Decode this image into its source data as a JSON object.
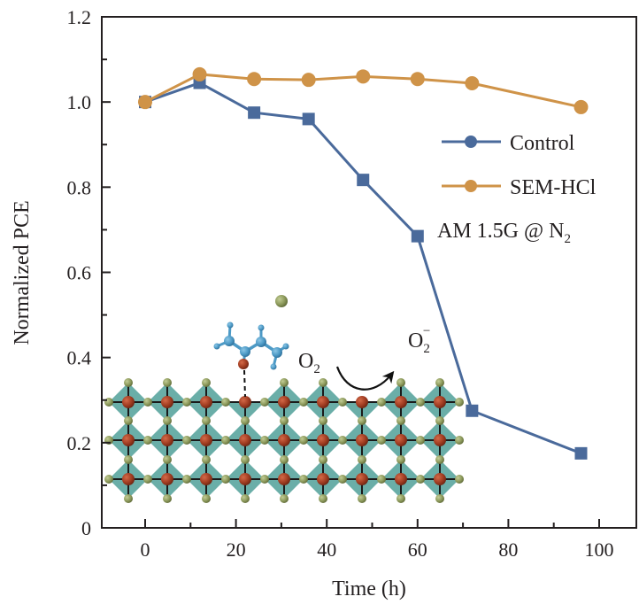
{
  "chart_data": {
    "type": "line",
    "title": "",
    "xlabel": "Time (h)",
    "ylabel": "Normalized PCE",
    "xlim": [
      -10,
      110
    ],
    "ylim": [
      0,
      1.2
    ],
    "xticks": [
      0,
      20,
      40,
      60,
      80,
      100
    ],
    "xtick_labels": [
      "0",
      "20",
      "40",
      "60",
      "80",
      "100"
    ],
    "x_minor_ticks": [
      10,
      30,
      50,
      70,
      90
    ],
    "yticks": [
      0,
      0.2,
      0.4,
      0.6,
      0.8,
      1.0,
      1.2
    ],
    "ytick_labels": [
      "0",
      "0.2",
      "0.4",
      "0.6",
      "0.8",
      "1.0",
      "1.2"
    ],
    "y_minor_ticks": [
      0.1,
      0.3,
      0.5,
      0.7,
      0.9,
      1.1
    ],
    "grid": false,
    "legend_position": "right",
    "series": [
      {
        "name": "Control",
        "color": "#4a6a9b",
        "marker": "square",
        "legend_marker": "circle",
        "x": [
          0,
          12,
          24,
          36,
          48,
          60,
          72,
          96
        ],
        "y": [
          1.0,
          1.045,
          0.975,
          0.96,
          0.817,
          0.685,
          0.275,
          0.175
        ]
      },
      {
        "name": "SEM-HCl",
        "color": "#cf9348",
        "marker": "circle",
        "legend_marker": "circle",
        "x": [
          0,
          12,
          24,
          36,
          48,
          60,
          72,
          96
        ],
        "y": [
          1.0,
          1.065,
          1.054,
          1.052,
          1.06,
          1.054,
          1.044,
          0.988
        ]
      }
    ],
    "annotations": {
      "condition_main": "AM 1.5G @ N",
      "condition_sub": "2",
      "o2_main": "O",
      "o2_sub": "2",
      "o2_minus_main": "O",
      "o2_minus_sub": "2",
      "o2_minus_sup": "−"
    },
    "inset_illustration": {
      "description": "perovskite octahedral lattice with SEM-HCl molecule coordinated to surface; O2 converted to O2− arrow",
      "lattice_colors": {
        "octahedron": "#6aaea8",
        "b_site": "#a23d22",
        "x_site": "#8d9a5c",
        "bond": "#1a1a1a"
      },
      "molecule_colors": {
        "carbon": "#4d9ac6",
        "oxygen": "#a23d22",
        "chloride": "#8d9a5c"
      }
    }
  }
}
